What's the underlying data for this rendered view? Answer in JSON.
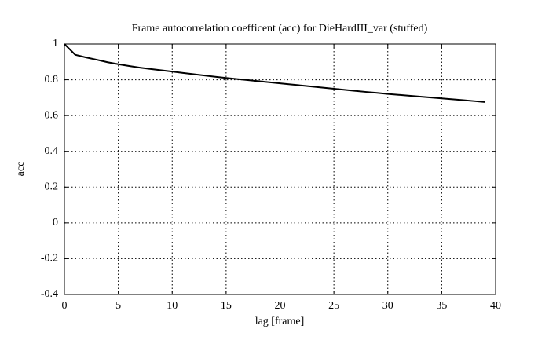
{
  "chart_data": {
    "type": "line",
    "title": "Frame autocorrelation coefficent (acc) for DieHardIII_var (stuffed)",
    "x_label": "lag [frame]",
    "y_label": "acc",
    "x": [
      0,
      1,
      2,
      3,
      4,
      5,
      6,
      7,
      8,
      9,
      10,
      11,
      12,
      13,
      14,
      15,
      16,
      17,
      18,
      19,
      20,
      21,
      22,
      23,
      24,
      25,
      26,
      27,
      28,
      29,
      30,
      31,
      32,
      33,
      34,
      35,
      36,
      37,
      38,
      39
    ],
    "series": [
      {
        "color": "#000000",
        "values": [
          1.0,
          0.94,
          0.925,
          0.912,
          0.898,
          0.887,
          0.877,
          0.868,
          0.86,
          0.853,
          0.846,
          0.838,
          0.831,
          0.824,
          0.817,
          0.81,
          0.804,
          0.798,
          0.792,
          0.786,
          0.78,
          0.774,
          0.768,
          0.762,
          0.756,
          0.75,
          0.744,
          0.738,
          0.732,
          0.727,
          0.721,
          0.716,
          0.711,
          0.706,
          0.701,
          0.696,
          0.691,
          0.686,
          0.681,
          0.676
        ]
      }
    ],
    "xlim": [
      0,
      40
    ],
    "xticks": [
      0,
      5,
      10,
      15,
      20,
      25,
      30,
      35,
      40
    ],
    "ylim": [
      -0.4,
      1
    ],
    "yticks": [
      -0.4,
      -0.2,
      0,
      0.2,
      0.4,
      0.6,
      0.8,
      1
    ],
    "grid": true
  }
}
